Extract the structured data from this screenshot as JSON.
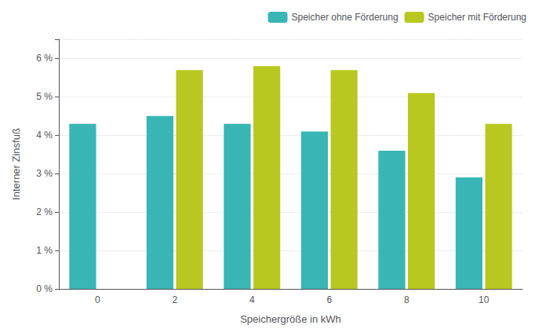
{
  "chart_data": {
    "type": "bar",
    "categories": [
      0,
      2,
      4,
      6,
      8,
      10
    ],
    "series": [
      {
        "name": "Speicher ohne Förderung",
        "color": "#3ab5b5",
        "values": [
          4.3,
          4.5,
          4.3,
          4.1,
          3.6,
          2.9
        ]
      },
      {
        "name": "Speicher mit Förderung",
        "color": "#b8c820",
        "values": [
          0,
          5.7,
          5.8,
          5.7,
          5.1,
          4.3
        ]
      }
    ],
    "xlabel": "Speichergröße in kWh",
    "ylabel": "Interner Zinsfuß",
    "ylim": [
      0,
      6.5
    ],
    "yticks": [
      {
        "value": 0,
        "label": "0 %"
      },
      {
        "value": 1,
        "label": "1 %"
      },
      {
        "value": 2,
        "label": "2 %"
      },
      {
        "value": 3,
        "label": "3 %"
      },
      {
        "value": 4,
        "label": "4 %"
      },
      {
        "value": 5,
        "label": "5 %"
      },
      {
        "value": 6,
        "label": "6 %"
      }
    ],
    "grid": true,
    "legend": "upper right"
  }
}
